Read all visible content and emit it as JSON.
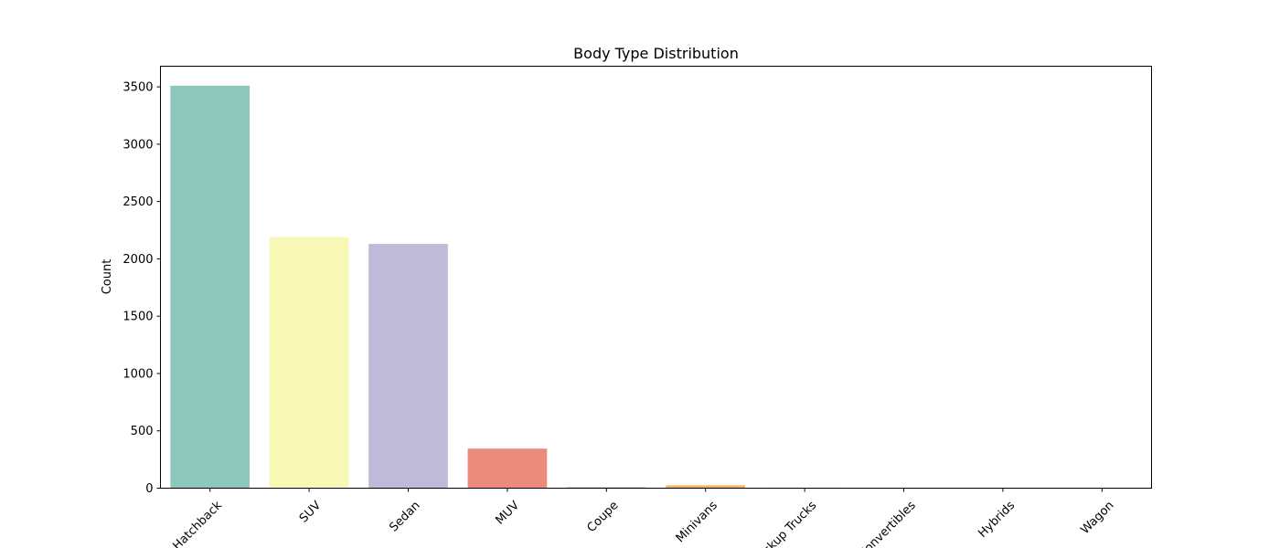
{
  "chart_data": {
    "type": "bar",
    "title": "Body Type Distribution",
    "xlabel": "",
    "ylabel": "Count",
    "categories": [
      "Hatchback",
      "SUV",
      "Sedan",
      "MUV",
      "Coupe",
      "Minivans",
      "Pickup Trucks",
      "Convertibles",
      "Hybrids",
      "Wagon"
    ],
    "values": [
      3510,
      2190,
      2130,
      345,
      8,
      25,
      5,
      3,
      1,
      1
    ],
    "colors": [
      "#8dc7bc",
      "#f7f7b6",
      "#bebad8",
      "#eb8b7d",
      "#88b4d6",
      "#f4b463",
      "#b3de69",
      "#fccde5",
      "#d9d9d9",
      "#bc80bd"
    ],
    "ylim": [
      0,
      3680
    ],
    "yticks": [
      0,
      500,
      1000,
      1500,
      2000,
      2500,
      3000,
      3500
    ],
    "grid": false,
    "legend": "none"
  }
}
